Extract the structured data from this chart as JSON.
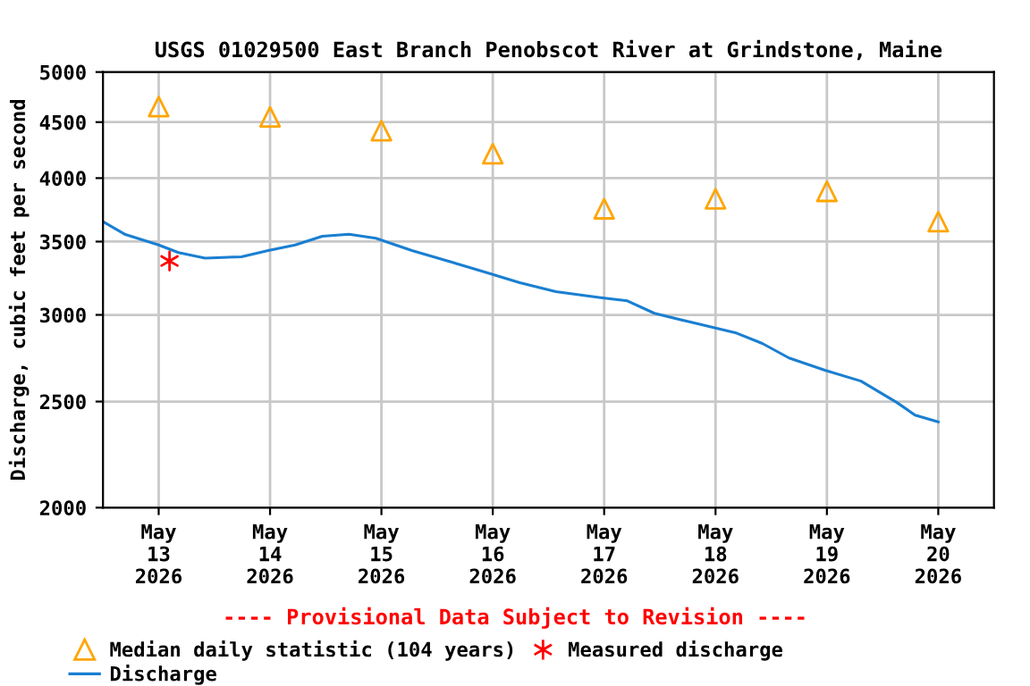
{
  "chart_data": {
    "type": "line",
    "title": "USGS 01029500 East Branch Penobscot River at Grindstone, Maine",
    "ylabel": "Discharge, cubic feet per second",
    "annotations": [
      "---- Provisional Data Subject to Revision ----"
    ],
    "log": "y",
    "grid": true,
    "legend": "bottom",
    "xlim": [
      "2026-05-12T12:00",
      "2026-05-20T12:00"
    ],
    "xticks": [
      {
        "value": "2026-05-13",
        "label": "May\n13\n2026"
      },
      {
        "value": "2026-05-14",
        "label": "May\n14\n2026"
      },
      {
        "value": "2026-05-15",
        "label": "May\n15\n2026"
      },
      {
        "value": "2026-05-16",
        "label": "May\n16\n2026"
      },
      {
        "value": "2026-05-17",
        "label": "May\n17\n2026"
      },
      {
        "value": "2026-05-18",
        "label": "May\n18\n2026"
      },
      {
        "value": "2026-05-19",
        "label": "May\n19\n2026"
      },
      {
        "value": "2026-05-20",
        "label": "May\n20\n2026"
      }
    ],
    "ylim": [
      2000,
      5000
    ],
    "yticks": [
      2000,
      2500,
      3000,
      3500,
      4000,
      4500,
      5000
    ],
    "series": [
      {
        "name": "Median daily statistic (104 years)",
        "type": "scatter",
        "marker": "triangle",
        "color": "#ffa500",
        "x": [
          "2026-05-13",
          "2026-05-14",
          "2026-05-15",
          "2026-05-16",
          "2026-05-17",
          "2026-05-18",
          "2026-05-19",
          "2026-05-20"
        ],
        "values": [
          4650,
          4550,
          4420,
          4210,
          3750,
          3830,
          3890,
          3650
        ]
      },
      {
        "name": "Measured discharge",
        "type": "scatter",
        "marker": "cross",
        "color": "#ff0000",
        "x": [
          "2026-05-13T02:20"
        ],
        "values": [
          3360
        ]
      },
      {
        "name": "Discharge",
        "marker": "none",
        "line_style": "solid",
        "color": "#1a7fd1",
        "x": [
          "2026-05-12T12:00",
          "2026-05-12T16:40",
          "2026-05-13T00:00",
          "2026-05-13T04:15",
          "2026-05-13T10:00",
          "2026-05-13T17:50",
          "2026-05-13T23:35",
          "2026-05-14T05:25",
          "2026-05-14T11:15",
          "2026-05-14T17:00",
          "2026-05-14T22:50",
          "2026-05-15T06:35",
          "2026-05-15T14:20",
          "2026-05-15T22:05",
          "2026-05-16T05:50",
          "2026-05-16T13:35",
          "2026-05-16T23:15",
          "2026-05-17T05:00",
          "2026-05-17T10:50",
          "2026-05-17T18:35",
          "2026-05-18T04:15",
          "2026-05-18T10:05",
          "2026-05-18T15:50",
          "2026-05-18T23:35",
          "2026-05-19T07:20",
          "2026-05-19T15:05",
          "2026-05-19T19:00",
          "2026-05-20T00:00"
        ],
        "values": [
          3650,
          3555,
          3475,
          3420,
          3380,
          3390,
          3435,
          3475,
          3540,
          3555,
          3525,
          3435,
          3360,
          3285,
          3210,
          3150,
          3110,
          3090,
          3010,
          2955,
          2890,
          2825,
          2740,
          2670,
          2610,
          2495,
          2430,
          2395
        ]
      }
    ]
  }
}
